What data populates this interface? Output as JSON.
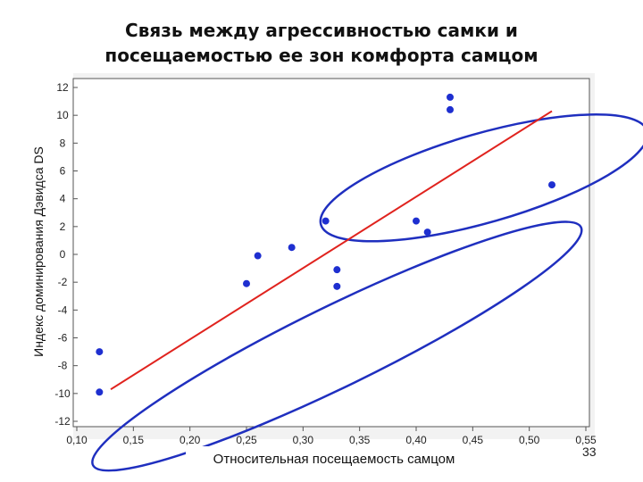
{
  "title_line1": "Связь между агрессивностью самки и",
  "title_line2": "посещаемостью ее зон комфорта самцом",
  "slide_number": "33",
  "chart_data": {
    "type": "scatter",
    "title": "Связь между агрессивностью самки и посещаемостью ее зон комфорта самцом",
    "xlabel": "Относительная посещаемость самцом",
    "ylabel": "Индекс доминирования Дэвидса DS",
    "xlim": [
      0.1,
      0.55
    ],
    "ylim": [
      -12,
      12
    ],
    "x_ticks": [
      "0,10",
      "0,15",
      "0,20",
      "0,25",
      "0,30",
      "0,35",
      "0,40",
      "0,45",
      "0,50",
      "0,55"
    ],
    "x_tick_values": [
      0.1,
      0.15,
      0.2,
      0.25,
      0.3,
      0.35,
      0.4,
      0.45,
      0.5,
      0.55
    ],
    "y_ticks": [
      "12",
      "10",
      "8",
      "6",
      "4",
      "2",
      "0",
      "-2",
      "-4",
      "-6",
      "-8",
      "-10",
      "-12"
    ],
    "y_tick_values": [
      12,
      10,
      8,
      6,
      4,
      2,
      0,
      -2,
      -4,
      -6,
      -8,
      -10,
      -12
    ],
    "points": [
      {
        "x": 0.12,
        "y": -7.0
      },
      {
        "x": 0.12,
        "y": -9.9
      },
      {
        "x": 0.25,
        "y": -2.1
      },
      {
        "x": 0.26,
        "y": -0.1
      },
      {
        "x": 0.29,
        "y": 0.5
      },
      {
        "x": 0.32,
        "y": 2.4
      },
      {
        "x": 0.33,
        "y": -1.1
      },
      {
        "x": 0.33,
        "y": -2.3
      },
      {
        "x": 0.4,
        "y": 2.4
      },
      {
        "x": 0.41,
        "y": 1.6
      },
      {
        "x": 0.43,
        "y": 11.3
      },
      {
        "x": 0.43,
        "y": 10.4
      },
      {
        "x": 0.52,
        "y": 5.0
      }
    ],
    "regression_line": {
      "x": [
        0.13,
        0.52
      ],
      "y": [
        -9.7,
        10.3
      ]
    },
    "ellipses": [
      {
        "cx": 0.33,
        "cy": -6.6,
        "rx": 0.24,
        "ry": 2.9,
        "angle": -26
      },
      {
        "cx": 0.46,
        "cy": 5.5,
        "rx": 0.15,
        "ry": 3.2,
        "angle": -16
      }
    ],
    "point_color": "#1e2fd0",
    "line_color": "#e0231e",
    "ellipse_color": "#1f2fbf",
    "grid": false
  }
}
